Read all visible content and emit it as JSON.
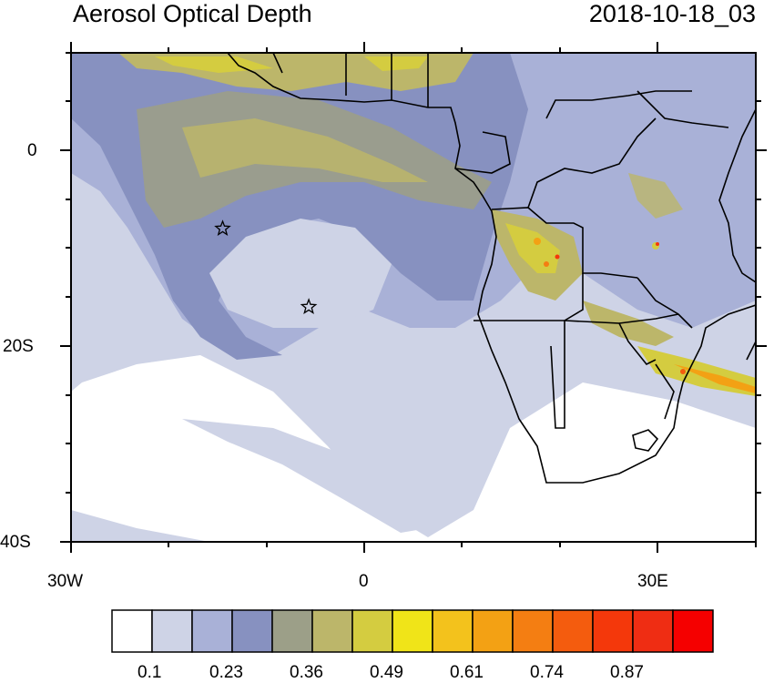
{
  "header": {
    "title": "Aerosol Optical Depth",
    "timestamp": "2018-10-18_03"
  },
  "axes": {
    "y_labels": [
      "0",
      "20S",
      "40S"
    ],
    "x_labels": [
      "30W",
      "0",
      "30E"
    ]
  },
  "colorbar": {
    "labels": [
      "0.1",
      "0.23",
      "0.36",
      "0.49",
      "0.61",
      "0.74",
      "0.87"
    ],
    "colors": [
      "#ffffff",
      "#ced3e6",
      "#a9b1d7",
      "#8791c0",
      "#9c9f88",
      "#bcb66a",
      "#d4cc40",
      "#f0e418",
      "#f3c21c",
      "#f3a114",
      "#f47e12",
      "#f45c0e",
      "#f4380b",
      "#ef2d13",
      "#f50000"
    ]
  },
  "markers": [
    {
      "name": "star-marker-1",
      "lon": -14.5,
      "lat": -8
    },
    {
      "name": "star-marker-2",
      "lon": -5.7,
      "lat": -16
    }
  ],
  "colors": {
    "ocean_bg": "#8791c0"
  }
}
